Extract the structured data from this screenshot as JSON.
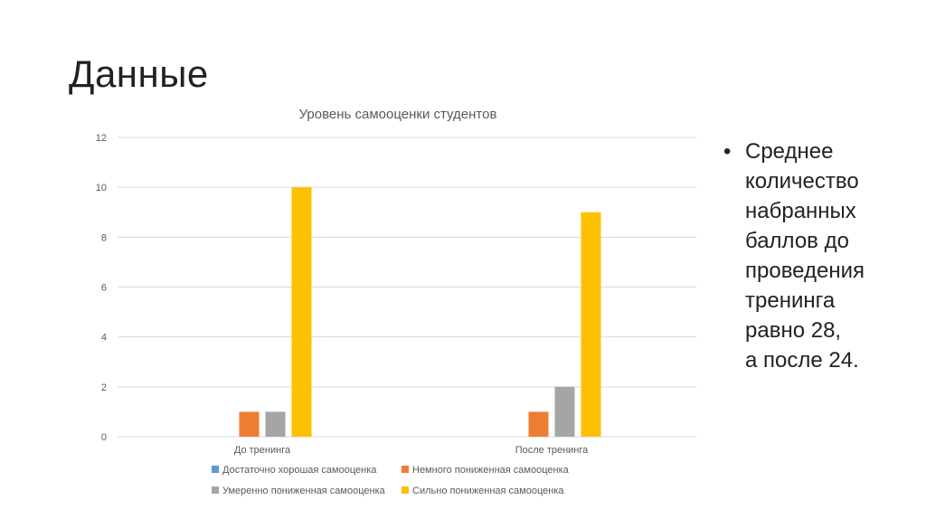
{
  "slide": {
    "title": "Данные"
  },
  "colors": {
    "series": [
      "#5b9bd5",
      "#ed7d31",
      "#a5a5a5",
      "#ffc000"
    ],
    "grid": "#d9d9d9",
    "axis_text": "#595959"
  },
  "chart_data": {
    "type": "bar",
    "title": "Уровень самооценки студентов",
    "categories": [
      "До тренинга",
      "После тренинга"
    ],
    "series": [
      {
        "name": "Достаточно хорошая самооценка",
        "values": [
          0,
          0
        ]
      },
      {
        "name": "Немного пониженная самооценка",
        "values": [
          1,
          1
        ]
      },
      {
        "name": "Умеренно пониженная самооценка",
        "values": [
          1,
          2
        ]
      },
      {
        "name": "Сильно пониженная самооценка",
        "values": [
          10,
          9
        ]
      }
    ],
    "ylim": [
      0,
      12
    ],
    "yticks": [
      0,
      2,
      4,
      6,
      8,
      10,
      12
    ],
    "grid": true,
    "legend": "bottom"
  },
  "bullet": {
    "symbol": "•",
    "lines": [
      "Среднее",
      "количество",
      "набранных",
      "баллов до",
      "проведения",
      "тренинга",
      "равно 28,",
      "а после 24."
    ]
  }
}
